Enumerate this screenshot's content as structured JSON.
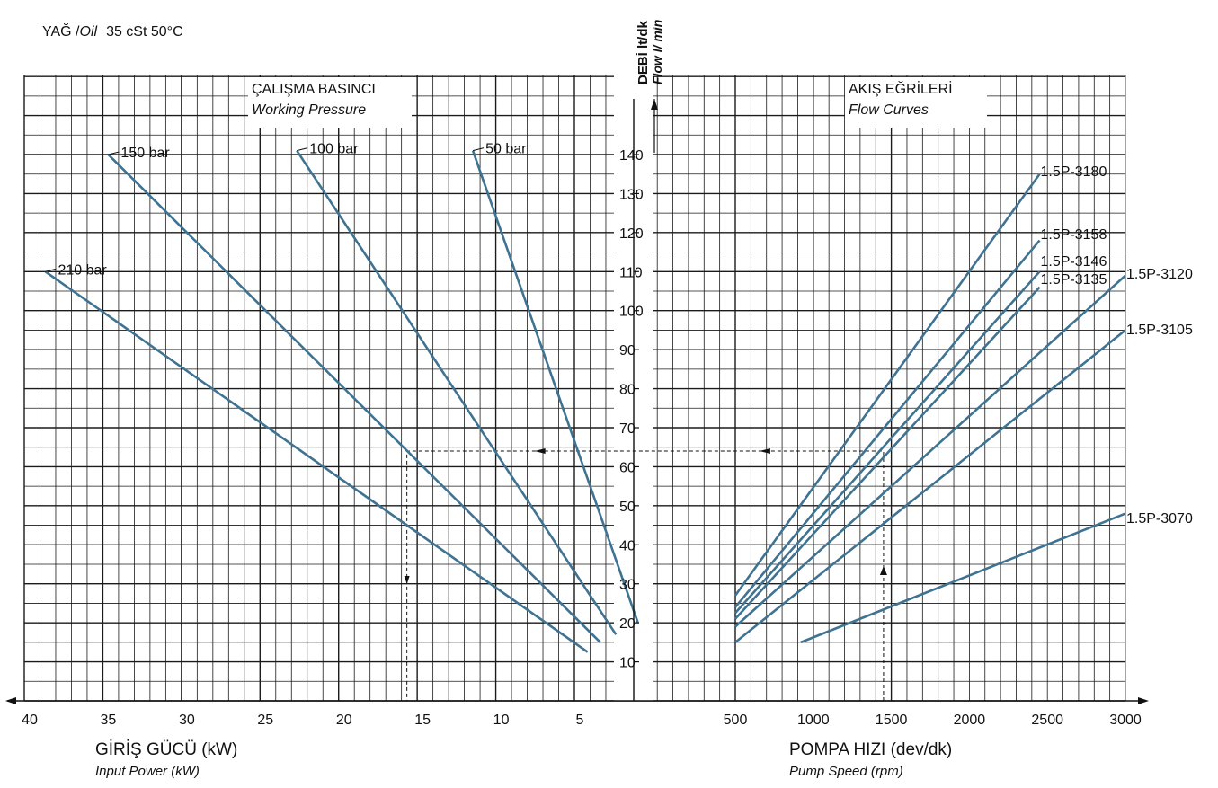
{
  "chart_data": {
    "type": "line",
    "oil_prefix": "YAĞ /",
    "oil_en": "Oil",
    "oil_spec": "35 cSt 50°C",
    "y_axis": {
      "label_tr": "DEBİ lt/dk",
      "label_en": "Flow l/ min",
      "ticks": [
        10,
        20,
        30,
        40,
        50,
        60,
        70,
        80,
        90,
        100,
        110,
        120,
        130,
        140
      ],
      "range": [
        0,
        160
      ]
    },
    "left_panel": {
      "title_tr": "ÇALIŞMA BASINCI",
      "title_en": "Working Pressure",
      "xlabel_tr": "GİRİŞ GÜCÜ (kW)",
      "xlabel_en": "Input Power (kW)",
      "xticks": [
        40,
        35,
        30,
        25,
        20,
        15,
        10,
        5
      ],
      "xrange": [
        40.6,
        0
      ],
      "series": [
        {
          "name": "210 bar",
          "points": [
            [
              39,
              110
            ],
            [
              4.5,
              12.5
            ]
          ]
        },
        {
          "name": "150 bar",
          "points": [
            [
              35,
              140
            ],
            [
              3.7,
              15
            ]
          ]
        },
        {
          "name": "100 bar",
          "points": [
            [
              23,
              141
            ],
            [
              2.7,
              17
            ]
          ]
        },
        {
          "name": "50 bar",
          "points": [
            [
              11.8,
              141
            ],
            [
              1.3,
              20
            ]
          ]
        }
      ]
    },
    "right_panel": {
      "title_tr": "AKIŞ EĞRİLERİ",
      "title_en": "Flow Curves",
      "xlabel_tr": "POMPA HIZI (dev/dk)",
      "xlabel_en": "Pump Speed (rpm)",
      "xticks": [
        500,
        1000,
        1500,
        2000,
        2500,
        3000
      ],
      "xrange": [
        -100,
        3000
      ],
      "series": [
        {
          "name": "1.5P-3180",
          "points": [
            [
              500,
              27
            ],
            [
              2450,
              135
            ]
          ]
        },
        {
          "name": "1.5P-3158",
          "points": [
            [
              500,
              24
            ],
            [
              2450,
              118
            ]
          ]
        },
        {
          "name": "1.5P-3146",
          "points": [
            [
              500,
              22.5
            ],
            [
              2450,
              110
            ]
          ]
        },
        {
          "name": "1.5P-3135",
          "points": [
            [
              500,
              21
            ],
            [
              2450,
              106
            ]
          ]
        },
        {
          "name": "1.5P-3120",
          "points": [
            [
              500,
              19
            ],
            [
              3000,
              109
            ]
          ]
        },
        {
          "name": "1.5P-3105",
          "points": [
            [
              500,
              15
            ],
            [
              3000,
              95
            ]
          ]
        },
        {
          "name": "1.5P-3070",
          "points": [
            [
              920,
              15
            ],
            [
              3000,
              48
            ]
          ]
        }
      ]
    },
    "example": {
      "flow": 64,
      "speed": 1450,
      "power": 16
    },
    "line_color": "#3f7391",
    "grid": true
  }
}
